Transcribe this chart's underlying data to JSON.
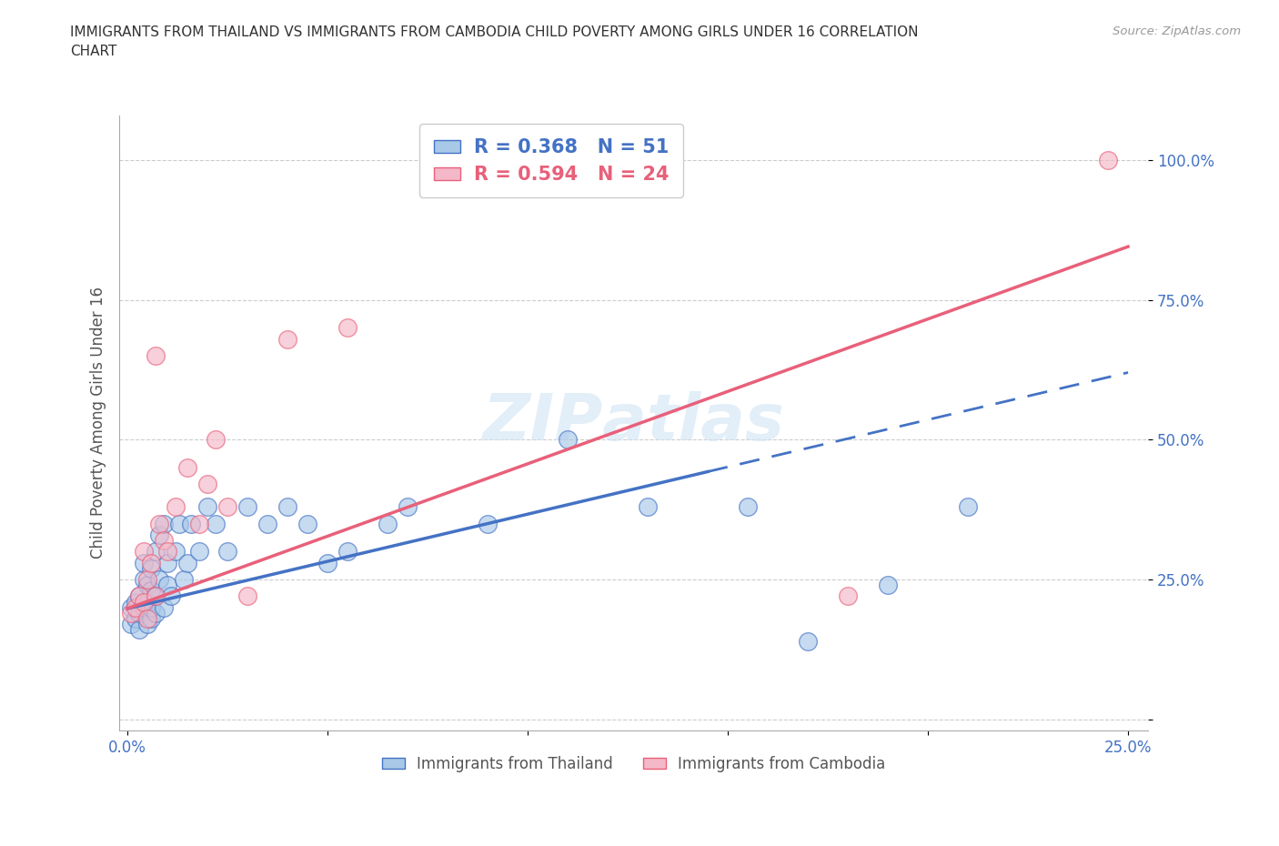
{
  "title": "IMMIGRANTS FROM THAILAND VS IMMIGRANTS FROM CAMBODIA CHILD POVERTY AMONG GIRLS UNDER 16 CORRELATION\nCHART",
  "source_text": "Source: ZipAtlas.com",
  "ylabel": "Child Poverty Among Girls Under 16",
  "xlim": [
    -0.002,
    0.255
  ],
  "ylim": [
    -0.02,
    1.08
  ],
  "R_thailand": 0.368,
  "N_thailand": 51,
  "R_cambodia": 0.594,
  "N_cambodia": 24,
  "color_thailand": "#a8c8e8",
  "color_cambodia": "#f4b8c8",
  "color_thailand_line": "#4472c4",
  "color_cambodia_line": "#e8607a",
  "watermark": "ZIPAtlas",
  "thailand_x": [
    0.001,
    0.001,
    0.002,
    0.002,
    0.003,
    0.003,
    0.003,
    0.004,
    0.004,
    0.004,
    0.005,
    0.005,
    0.005,
    0.006,
    0.006,
    0.006,
    0.006,
    0.007,
    0.007,
    0.007,
    0.008,
    0.008,
    0.009,
    0.009,
    0.01,
    0.01,
    0.011,
    0.012,
    0.013,
    0.014,
    0.015,
    0.016,
    0.018,
    0.02,
    0.022,
    0.025,
    0.03,
    0.035,
    0.04,
    0.045,
    0.05,
    0.055,
    0.065,
    0.07,
    0.09,
    0.11,
    0.13,
    0.155,
    0.17,
    0.19,
    0.21
  ],
  "thailand_y": [
    0.17,
    0.2,
    0.18,
    0.21,
    0.16,
    0.19,
    0.22,
    0.2,
    0.25,
    0.28,
    0.17,
    0.21,
    0.24,
    0.18,
    0.2,
    0.23,
    0.27,
    0.19,
    0.22,
    0.3,
    0.25,
    0.33,
    0.2,
    0.35,
    0.24,
    0.28,
    0.22,
    0.3,
    0.35,
    0.25,
    0.28,
    0.35,
    0.3,
    0.38,
    0.35,
    0.3,
    0.38,
    0.35,
    0.38,
    0.35,
    0.28,
    0.3,
    0.35,
    0.38,
    0.35,
    0.5,
    0.38,
    0.38,
    0.14,
    0.24,
    0.38
  ],
  "cambodia_x": [
    0.001,
    0.002,
    0.003,
    0.004,
    0.004,
    0.005,
    0.005,
    0.006,
    0.007,
    0.007,
    0.008,
    0.009,
    0.01,
    0.012,
    0.015,
    0.018,
    0.02,
    0.022,
    0.025,
    0.03,
    0.04,
    0.055,
    0.18,
    0.245
  ],
  "cambodia_y": [
    0.19,
    0.2,
    0.22,
    0.21,
    0.3,
    0.18,
    0.25,
    0.28,
    0.22,
    0.65,
    0.35,
    0.32,
    0.3,
    0.38,
    0.45,
    0.35,
    0.42,
    0.5,
    0.38,
    0.22,
    0.68,
    0.7,
    0.22,
    1.0
  ],
  "line_th_x0": 0.0,
  "line_th_y0": 0.198,
  "line_th_x1": 0.25,
  "line_th_y1": 0.62,
  "line_th_solid_end": 0.145,
  "line_cam_x0": 0.0,
  "line_cam_y0": 0.198,
  "line_cam_x1": 0.25,
  "line_cam_y1": 0.845
}
